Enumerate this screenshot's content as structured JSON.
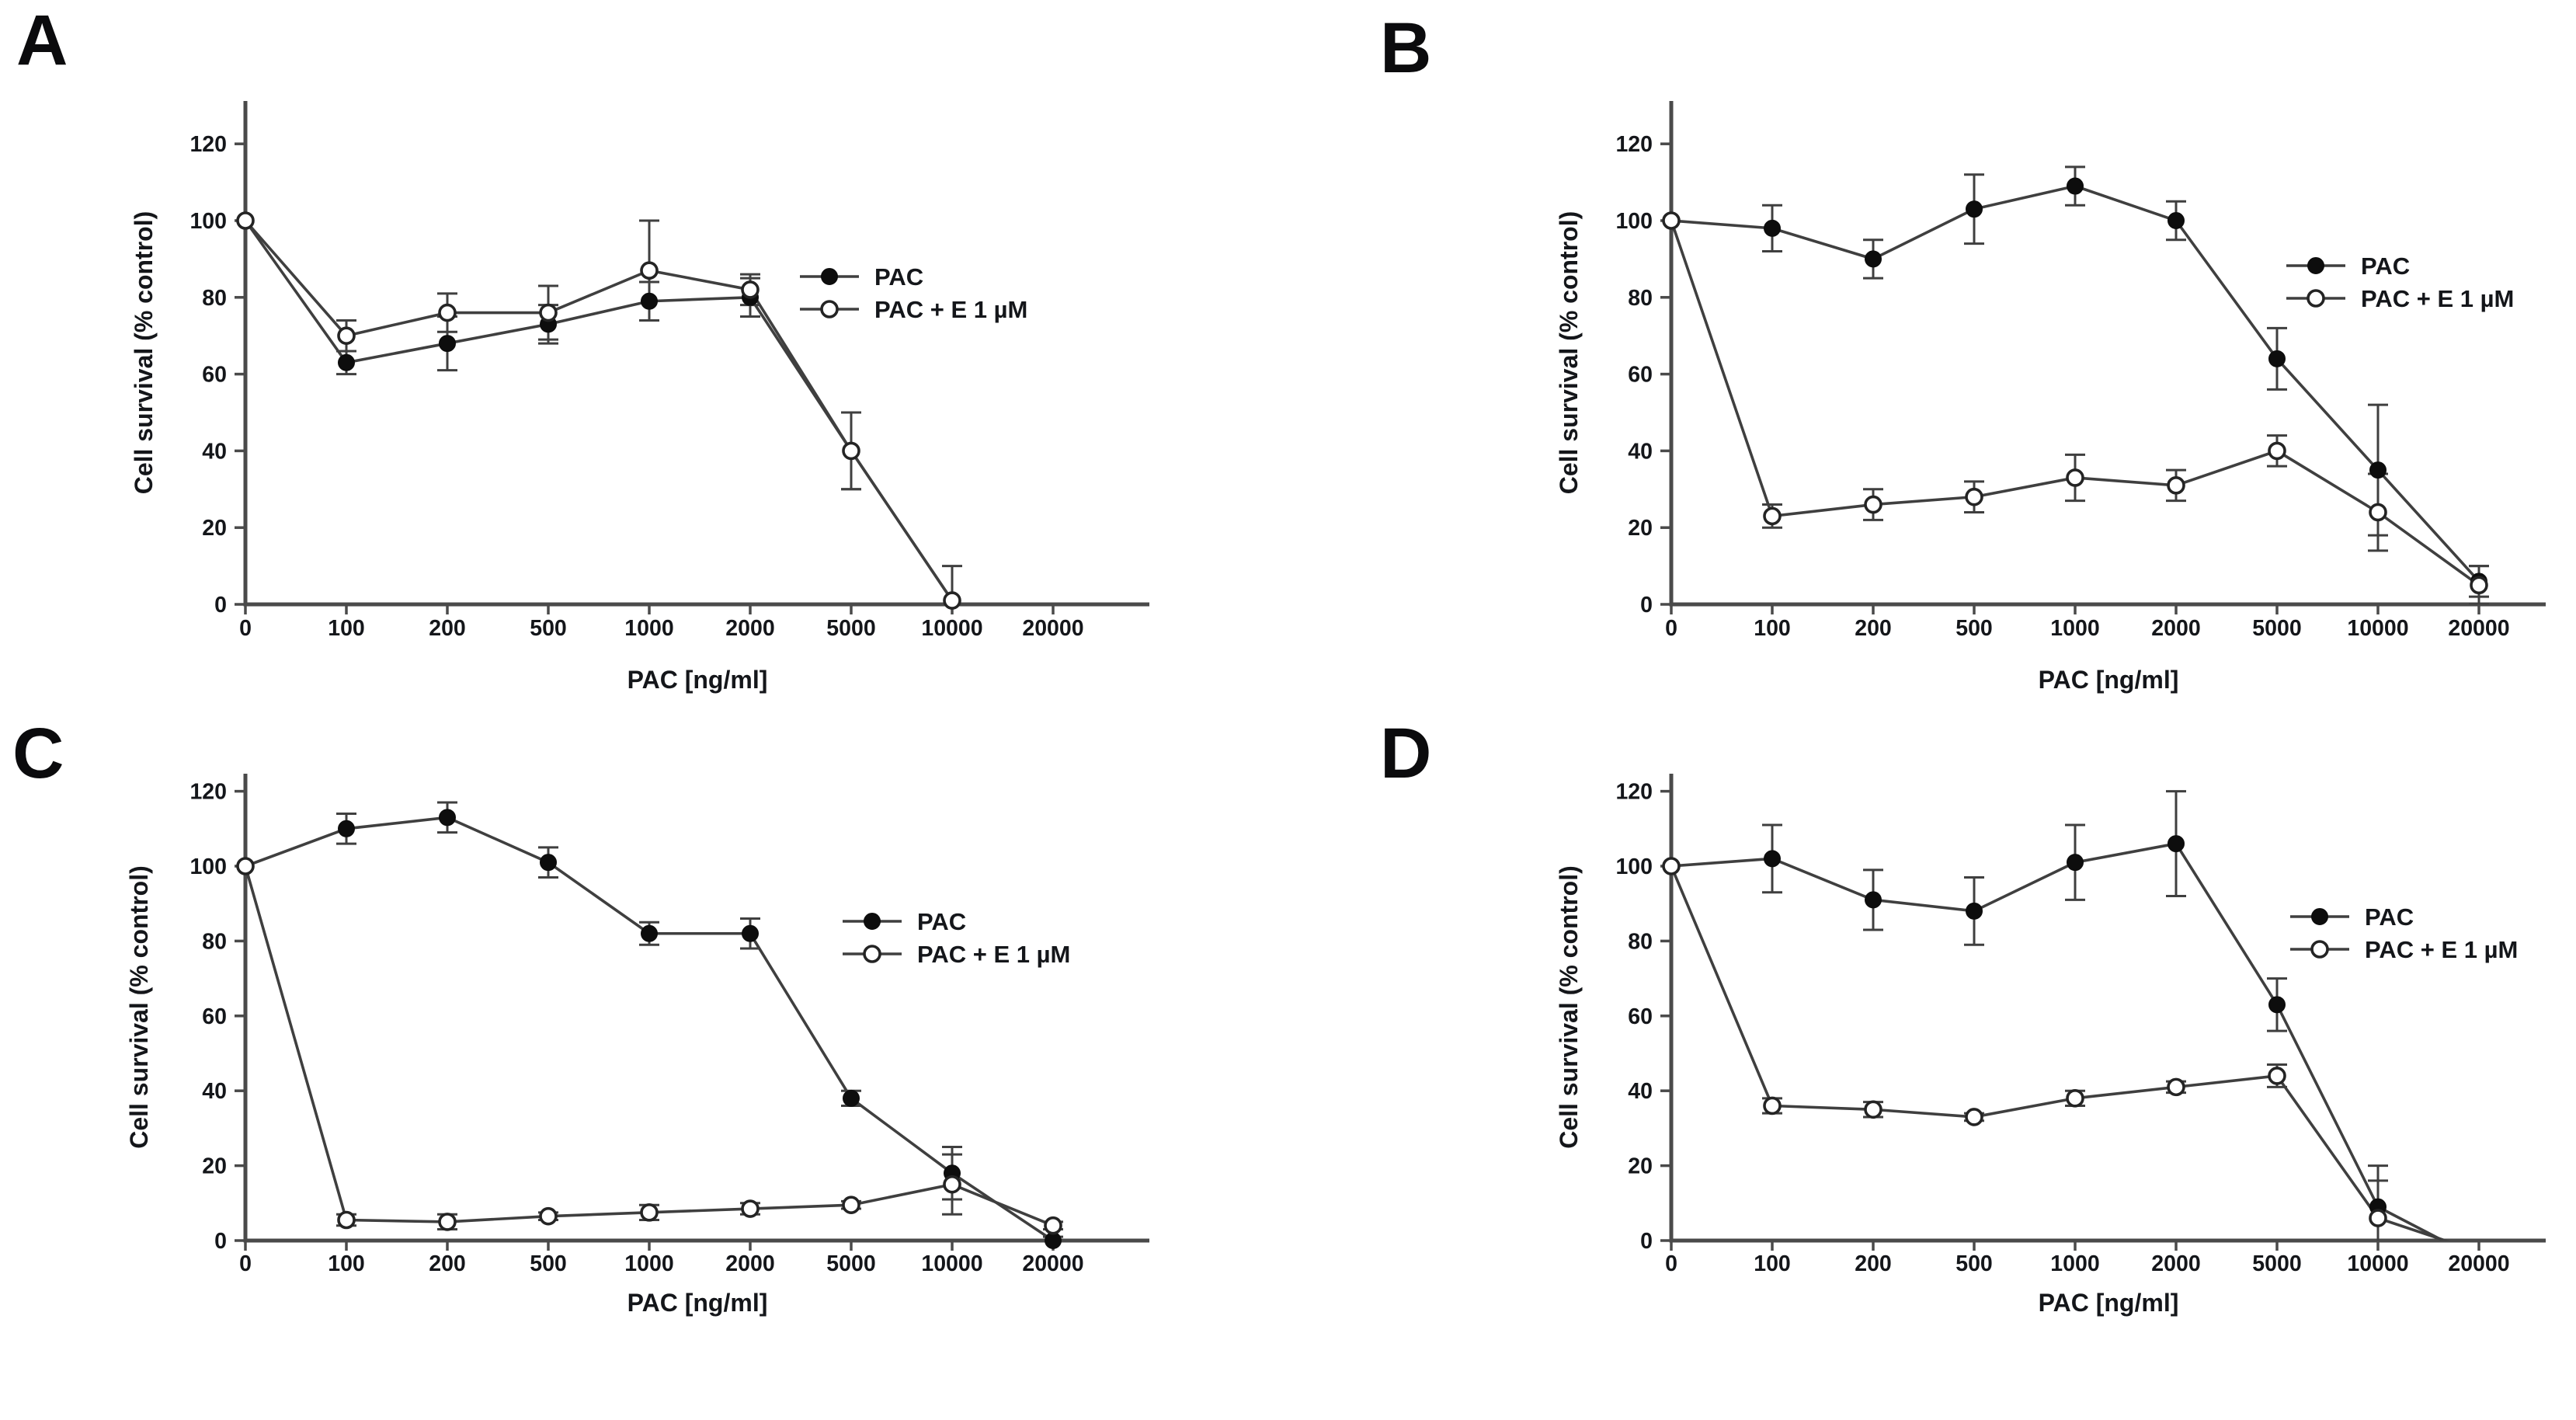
{
  "page": {
    "background": "#ffffff",
    "description": "Four-panel line chart figure: cell survival versus paclitaxel concentration with and without elacridar"
  },
  "figure": {
    "x_axis_label": "PAC [ng/ml]",
    "y_axis_label": "Cell survival (% control)",
    "legend_labels": [
      "PAC",
      "PAC + E 1 µM"
    ],
    "colors": {
      "line": "#3f3f3f",
      "axis": "#4a4a4a",
      "text": "#14161a",
      "marker_filled": "#0d0d0d",
      "marker_open_stroke": "#242424",
      "marker_open_fill": "#ffffff"
    }
  },
  "chart_data": [
    {
      "panel": "A",
      "type": "line",
      "title": "",
      "xlabel": "PAC [ng/ml]",
      "ylabel": "Cell survival (% control)",
      "ylim": [
        0,
        120
      ],
      "yticks": [
        0,
        20,
        40,
        60,
        80,
        100,
        120
      ],
      "x_categories": [
        0,
        100,
        200,
        500,
        1000,
        2000,
        5000,
        10000,
        20000
      ],
      "grid": false,
      "legend_position": "inside-right",
      "series": [
        {
          "name": "PAC",
          "marker": "filled-circle",
          "values": [
            100,
            63,
            68,
            73,
            79,
            80,
            40,
            1,
            null
          ],
          "errors": [
            0,
            3,
            7,
            5,
            5,
            5,
            10,
            0,
            null
          ]
        },
        {
          "name": "PAC + E 1 µM",
          "marker": "open-circle",
          "values": [
            100,
            70,
            76,
            76,
            87,
            82,
            40,
            1,
            null
          ],
          "errors": [
            0,
            4,
            5,
            7,
            13,
            4,
            10,
            9,
            null
          ]
        }
      ]
    },
    {
      "panel": "B",
      "type": "line",
      "title": "",
      "xlabel": "PAC [ng/ml]",
      "ylabel": "Cell survival (% control)",
      "ylim": [
        0,
        120
      ],
      "yticks": [
        0,
        20,
        40,
        60,
        80,
        100,
        120
      ],
      "x_categories": [
        0,
        100,
        200,
        500,
        1000,
        2000,
        5000,
        10000,
        20000
      ],
      "grid": false,
      "legend_position": "inside-right",
      "series": [
        {
          "name": "PAC",
          "marker": "filled-circle",
          "values": [
            100,
            98,
            90,
            103,
            109,
            100,
            64,
            35,
            6
          ],
          "errors": [
            0,
            6,
            5,
            9,
            5,
            5,
            8,
            17,
            4
          ]
        },
        {
          "name": "PAC + E 1 µM",
          "marker": "open-circle",
          "values": [
            100,
            23,
            26,
            28,
            33,
            31,
            40,
            24,
            5
          ],
          "errors": [
            0,
            3,
            4,
            4,
            6,
            4,
            4,
            10,
            5
          ]
        }
      ]
    },
    {
      "panel": "C",
      "type": "line",
      "title": "",
      "xlabel": "PAC [ng/ml]",
      "ylabel": "Cell survival (% control)",
      "ylim": [
        0,
        120
      ],
      "yticks": [
        0,
        20,
        40,
        60,
        80,
        100,
        120
      ],
      "x_categories": [
        0,
        100,
        200,
        500,
        1000,
        2000,
        5000,
        10000,
        20000
      ],
      "grid": false,
      "legend_position": "inside-right",
      "series": [
        {
          "name": "PAC",
          "marker": "filled-circle",
          "values": [
            100,
            110,
            113,
            101,
            82,
            82,
            38,
            18,
            0
          ],
          "errors": [
            0,
            4,
            4,
            4,
            3,
            4,
            2,
            7,
            1
          ]
        },
        {
          "name": "PAC + E 1 µM",
          "marker": "open-circle",
          "values": [
            100,
            5.5,
            5,
            6.5,
            7.5,
            8.5,
            9.5,
            15,
            4
          ],
          "errors": [
            0,
            1.5,
            2,
            1,
            2,
            1.5,
            1,
            8,
            1
          ]
        }
      ]
    },
    {
      "panel": "D",
      "type": "line",
      "title": "",
      "xlabel": "PAC [ng/ml]",
      "ylabel": "Cell survival (% control)",
      "ylim": [
        0,
        120
      ],
      "yticks": [
        0,
        20,
        40,
        60,
        80,
        100,
        120
      ],
      "x_categories": [
        0,
        100,
        200,
        500,
        1000,
        2000,
        5000,
        10000,
        20000
      ],
      "grid": false,
      "legend_position": "inside-right",
      "series": [
        {
          "name": "PAC",
          "marker": "filled-circle",
          "values": [
            100,
            102,
            91,
            88,
            101,
            106,
            63,
            9,
            -5
          ],
          "errors": [
            0,
            9,
            8,
            9,
            10,
            14,
            7,
            11,
            0
          ]
        },
        {
          "name": "PAC + E 1 µM",
          "marker": "open-circle",
          "values": [
            100,
            36,
            35,
            33,
            38,
            41,
            44,
            6,
            -3
          ],
          "errors": [
            0,
            2,
            2,
            1,
            2,
            1.5,
            3,
            10,
            0
          ]
        }
      ]
    }
  ]
}
